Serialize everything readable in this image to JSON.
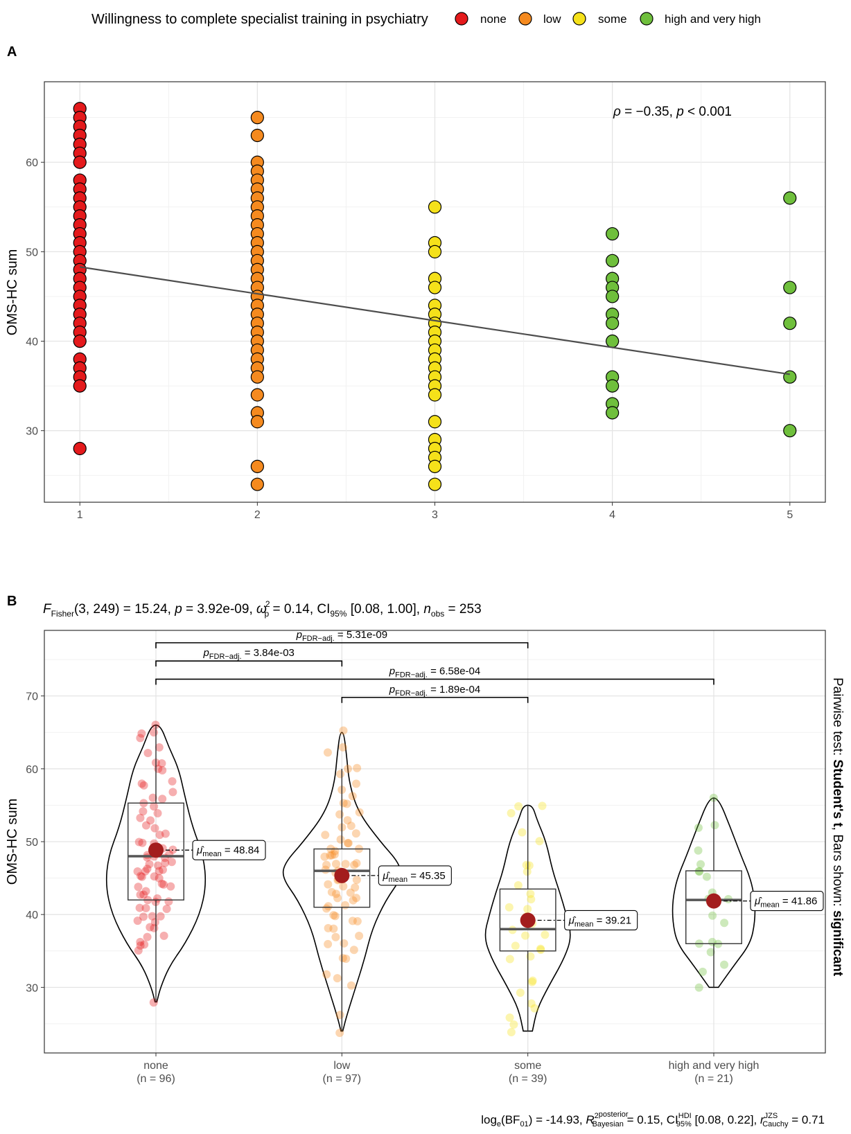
{
  "legend": {
    "title": "Willingness to complete specialist training in psychiatry",
    "items": [
      {
        "label": "none",
        "color": "#e41a1c"
      },
      {
        "label": "low",
        "color": "#f58a1f"
      },
      {
        "label": "some",
        "color": "#f5e11a"
      },
      {
        "label": "high and very high",
        "color": "#6fbf3c"
      }
    ]
  },
  "panelA": {
    "label": "A",
    "annotation": "ρ = −0.35, p < 0.001",
    "annotation_parts": {
      "rho": "ρ",
      "eq": " = −0.35, ",
      "p": "p",
      "rest": " < 0.001"
    }
  },
  "panelB": {
    "label": "B",
    "subtitle": {
      "F": "F",
      "F_sub": "Fisher",
      "args": "(3, 249)",
      "eq": " = 15.24, ",
      "p": "p",
      "pval": " = 3.92e-09, ",
      "omega": "ω",
      "omega_sup": "2",
      "omega_sub": "p",
      "omega_val": " = 0.14, CI",
      "ci_sub": "95%",
      "ci_val": " [0.08, 1.00], ",
      "n": "n",
      "n_sub": "obs",
      "n_val": " = 253"
    },
    "side_caption": {
      "pre": "Pairwise test: ",
      "bold1": "Student's t",
      "mid": ", Bars shown: ",
      "bold2": "significant"
    },
    "caption": {
      "log": "log",
      "log_sub": "e",
      "bf": "(BF",
      "bf_sub": "01",
      "bf_val": ") = -14.93, ",
      "r2": "R",
      "r2_sup": "2",
      "r2_sup2": "posterior",
      "r2_sub": "Bayesian",
      "r2_val": " = 0.15, CI",
      "ci_sup": "HDI",
      "ci_sub": "95%",
      "ci_val": " [0.08, 0.22], ",
      "r": "r",
      "r_sup": "JZS",
      "r_sub": "Cauchy",
      "r_val": " = 0.71"
    },
    "comparisons": [
      {
        "pfx": "p",
        "sub": "FDR−adj.",
        "val": " = 5.31e-09"
      },
      {
        "pfx": "p",
        "sub": "FDR−adj.",
        "val": " = 3.84e-03"
      },
      {
        "pfx": "p",
        "sub": "FDR−adj.",
        "val": " = 6.58e-04"
      },
      {
        "pfx": "p",
        "sub": "FDR−adj.",
        "val": " = 1.89e-04"
      }
    ],
    "mean_labels": [
      {
        "mu": "μ̂",
        "sub": "mean",
        "val": " = 48.84"
      },
      {
        "mu": "μ̂",
        "sub": "mean",
        "val": " = 45.35"
      },
      {
        "mu": "μ̂",
        "sub": "mean",
        "val": " = 39.21"
      },
      {
        "mu": "μ̂",
        "sub": "mean",
        "val": " = 41.86"
      }
    ]
  },
  "chart_data": [
    {
      "type": "scatter",
      "panel": "A",
      "xlabel": "",
      "ylabel": "OMS-HC sum",
      "xlim": [
        0.8,
        5.2
      ],
      "ylim": [
        22,
        69
      ],
      "x_ticks": [
        1,
        2,
        3,
        4,
        5
      ],
      "y_ticks": [
        30,
        40,
        50,
        60
      ],
      "regression_line": {
        "x": [
          1,
          5
        ],
        "y": [
          48.3,
          36.3
        ]
      },
      "series": [
        {
          "name": "none",
          "x": 1,
          "color": "#e41a1c",
          "y": [
            66,
            65,
            64,
            63,
            62,
            61,
            60,
            58,
            57,
            56,
            55,
            54,
            53,
            52,
            51,
            50,
            49,
            48,
            47,
            46,
            45,
            44,
            43,
            42,
            41,
            40,
            38,
            37,
            36,
            35,
            28
          ]
        },
        {
          "name": "low",
          "x": 2,
          "color": "#f58a1f",
          "y": [
            65,
            63,
            60,
            59,
            58,
            57,
            56,
            55,
            54,
            53,
            52,
            51,
            50,
            49,
            48,
            47,
            46,
            45,
            44,
            43,
            42,
            41,
            40,
            39,
            38,
            37,
            36,
            34,
            32,
            31,
            26,
            24
          ]
        },
        {
          "name": "some",
          "x": 3,
          "color": "#f5e11a",
          "y": [
            55,
            51,
            50,
            47,
            46,
            44,
            43,
            42,
            41,
            40,
            39,
            38,
            37,
            36,
            35,
            34,
            31,
            29,
            28,
            27,
            26,
            24
          ]
        },
        {
          "name": "high and very high",
          "x": 4,
          "color": "#6fbf3c",
          "y": [
            52,
            49,
            47,
            46,
            45,
            43,
            42,
            40,
            36,
            35,
            33,
            32
          ]
        },
        {
          "name": "high and very high",
          "x": 5,
          "color": "#6fbf3c",
          "y": [
            56,
            46,
            42,
            36,
            30
          ]
        }
      ]
    },
    {
      "type": "violin-box",
      "panel": "B",
      "xlabel": "",
      "ylabel": "OMS-HC sum",
      "ylim": [
        21,
        79
      ],
      "y_ticks": [
        30,
        40,
        50,
        60,
        70
      ],
      "categories": [
        "none",
        "low",
        "some",
        "high and very high"
      ],
      "counts": [
        "(n = 96)",
        "(n = 97)",
        "(n = 39)",
        "(n = 21)"
      ],
      "colors": [
        "#e41a1c",
        "#f58a1f",
        "#f5e11a",
        "#6fbf3c"
      ],
      "means": [
        48.84,
        45.35,
        39.21,
        41.86
      ],
      "boxes": [
        {
          "min": 28,
          "q1": 42,
          "median": 48,
          "q3": 55.3,
          "max": 66
        },
        {
          "min": 24,
          "q1": 41,
          "median": 46,
          "q3": 49,
          "max": 60
        },
        {
          "min": 24,
          "q1": 35,
          "median": 38,
          "q3": 43.5,
          "max": 55
        },
        {
          "min": 30,
          "q1": 36,
          "median": 42,
          "q3": 46,
          "max": 56
        }
      ],
      "violins": [
        {
          "y": [
            28,
            30,
            33,
            36,
            40,
            44,
            48,
            52,
            56,
            60,
            63,
            66
          ],
          "w": [
            0.01,
            0.05,
            0.15,
            0.32,
            0.48,
            0.55,
            0.52,
            0.4,
            0.32,
            0.25,
            0.14,
            0.05
          ]
        },
        {
          "y": [
            24,
            26,
            30,
            34,
            38,
            42,
            45,
            47,
            50,
            54,
            58,
            62,
            65
          ],
          "w": [
            0.01,
            0.05,
            0.15,
            0.25,
            0.33,
            0.48,
            0.65,
            0.63,
            0.42,
            0.18,
            0.08,
            0.05,
            0.02
          ]
        },
        {
          "y": [
            24,
            27,
            30,
            34,
            37,
            40,
            43,
            46,
            50,
            53,
            55
          ],
          "w": [
            0.05,
            0.1,
            0.22,
            0.4,
            0.48,
            0.42,
            0.35,
            0.27,
            0.2,
            0.1,
            0.05
          ]
        },
        {
          "y": [
            30,
            33,
            36,
            39,
            42,
            45,
            48,
            52,
            56
          ],
          "w": [
            0.05,
            0.22,
            0.4,
            0.45,
            0.45,
            0.4,
            0.3,
            0.18,
            0.05
          ]
        }
      ],
      "comparisons": [
        {
          "from": 0,
          "to": 2,
          "y": 77.3
        },
        {
          "from": 0,
          "to": 1,
          "y": 74.8
        },
        {
          "from": 0,
          "to": 3,
          "y": 72.3
        },
        {
          "from": 1,
          "to": 2,
          "y": 69.8
        }
      ],
      "jitter_points": [
        [
          66,
          65,
          65,
          64,
          63,
          62,
          61,
          61,
          60,
          60,
          58,
          58,
          58,
          57,
          56,
          56,
          55,
          55,
          54,
          54,
          53,
          53,
          52,
          52,
          51,
          51,
          50,
          50,
          50,
          49,
          49,
          49,
          49,
          48,
          48,
          48,
          48,
          48,
          47,
          47,
          47,
          47,
          46,
          46,
          46,
          46,
          46,
          45,
          45,
          45,
          45,
          44,
          44,
          44,
          44,
          43,
          43,
          43,
          42,
          42,
          42,
          42,
          41,
          41,
          41,
          40,
          40,
          40,
          39,
          39,
          38,
          38,
          37,
          37,
          36,
          36,
          36,
          35,
          28
        ],
        [
          65,
          63,
          62,
          60,
          60,
          59,
          58,
          57,
          56,
          55,
          55,
          54,
          54,
          53,
          52,
          52,
          51,
          51,
          50,
          50,
          50,
          49,
          49,
          49,
          48,
          48,
          48,
          48,
          47,
          47,
          47,
          47,
          47,
          46,
          46,
          46,
          46,
          45,
          45,
          45,
          45,
          44,
          44,
          44,
          43,
          43,
          43,
          42,
          42,
          42,
          41,
          41,
          41,
          40,
          40,
          39,
          39,
          38,
          38,
          37,
          37,
          36,
          36,
          35,
          34,
          34,
          32,
          31,
          30,
          26,
          24
        ],
        [
          55,
          55,
          54,
          51,
          50,
          47,
          47,
          46,
          44,
          43,
          42,
          41,
          41,
          40,
          39,
          38,
          37,
          37,
          36,
          35,
          35,
          34,
          34,
          31,
          31,
          29,
          28,
          27,
          26,
          25,
          24
        ],
        [
          56,
          52,
          52,
          49,
          47,
          46,
          46,
          45,
          43,
          42,
          42,
          40,
          39,
          36,
          36,
          36,
          35,
          33,
          32,
          30
        ]
      ]
    }
  ]
}
